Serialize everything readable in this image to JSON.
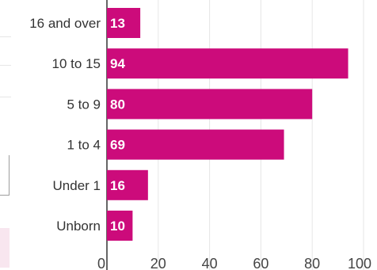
{
  "chart_data": {
    "type": "bar",
    "orientation": "horizontal",
    "categories": [
      "16 and over",
      "10 to 15",
      "5 to 9",
      "1 to 4",
      "Under 1",
      "Unborn"
    ],
    "values": [
      13,
      94,
      80,
      69,
      16,
      10
    ],
    "xlim": [
      0,
      100
    ],
    "xticks": [
      0,
      20,
      40,
      60,
      80,
      100
    ],
    "grid": true,
    "bar_color": "#cc0b7b"
  }
}
